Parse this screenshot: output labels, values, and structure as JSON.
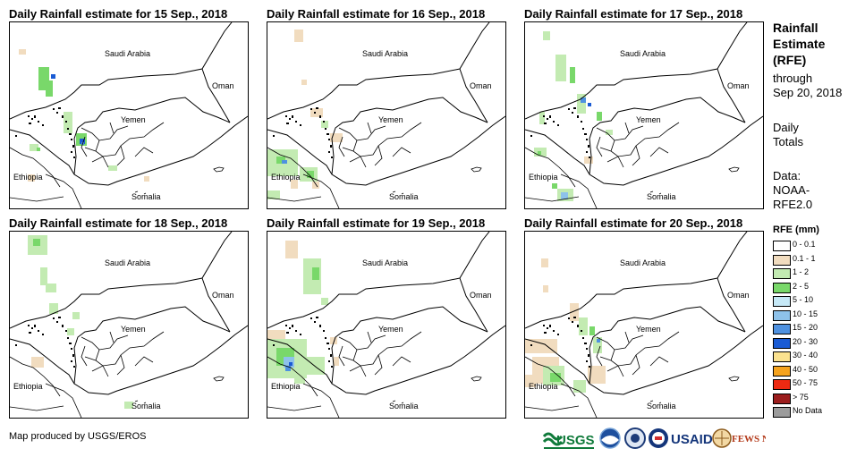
{
  "panels": [
    {
      "title": "Daily Rainfall estimate for 15 Sep., 2018",
      "key": "p15"
    },
    {
      "title": "Daily Rainfall estimate for 16 Sep., 2018",
      "key": "p16"
    },
    {
      "title": "Daily Rainfall estimate for 17 Sep., 2018",
      "key": "p17"
    },
    {
      "title": "Daily Rainfall estimate for 18 Sep., 2018",
      "key": "p18"
    },
    {
      "title": "Daily Rainfall estimate for 19 Sep., 2018",
      "key": "p19"
    },
    {
      "title": "Daily Rainfall estimate for 20 Sep., 2018",
      "key": "p20"
    }
  ],
  "map_labels": {
    "saudi": "Saudi Arabia",
    "oman": "Oman",
    "yemen": "Yemen",
    "ethiopia": "Ethiopia",
    "somalia": "Somalia"
  },
  "sidebar": {
    "title": "Rainfall Estimate (RFE)",
    "through": "through",
    "date": "Sep 20, 2018",
    "daily": "Daily",
    "totals": "Totals",
    "data_label": "Data:",
    "source_1": "NOAA-",
    "source_2": "RFE2.0"
  },
  "legend": {
    "title": "RFE (mm)",
    "items": [
      {
        "label": "0 - 0.1",
        "color": "#ffffff"
      },
      {
        "label": "0.1 - 1",
        "color": "#f1dcbf"
      },
      {
        "label": "1 - 2",
        "color": "#c3ebb2"
      },
      {
        "label": "2 - 5",
        "color": "#79d86a"
      },
      {
        "label": "5 - 10",
        "color": "#c6e9f7"
      },
      {
        "label": "10 - 15",
        "color": "#8ec2ea"
      },
      {
        "label": "15 - 20",
        "color": "#4e91e0"
      },
      {
        "label": "20 - 30",
        "color": "#1a5bd4"
      },
      {
        "label": "30 - 40",
        "color": "#fbe28f"
      },
      {
        "label": "40 - 50",
        "color": "#f5a31e"
      },
      {
        "label": "50 - 75",
        "color": "#ee2a12"
      },
      {
        "label": "> 75",
        "color": "#9b1d1d"
      },
      {
        "label": "No Data",
        "color": "#9c9c9c"
      }
    ]
  },
  "footer": {
    "credit": "Map produced by USGS/EROS"
  },
  "logos": {
    "usgs": "USGS",
    "usaid": "USAID",
    "fews": "FEWS NET"
  }
}
